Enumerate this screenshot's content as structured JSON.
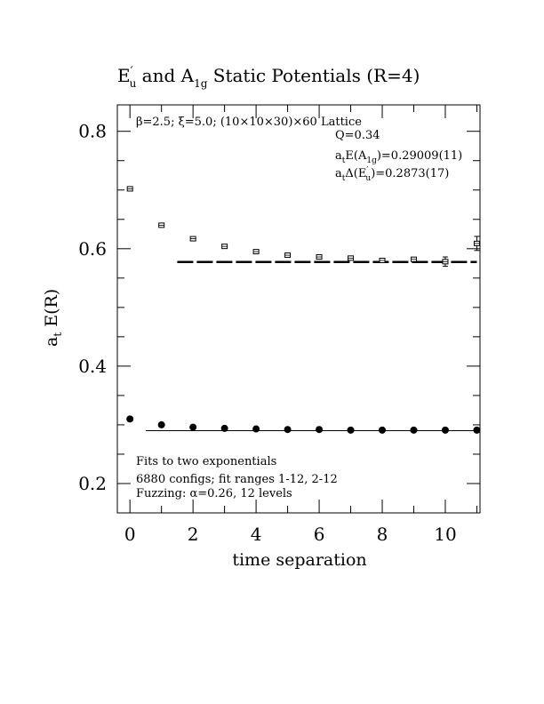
{
  "chart_data": {
    "type": "scatter",
    "title": {
      "part1": "E",
      "part1_sup": "′",
      "part1_sub": "u",
      "part2": " and A",
      "part2_sub": "1g",
      "part3": " Static Potentials (R=4)"
    },
    "xlabel": "time separation",
    "ylabel_main": "a",
    "ylabel_sub": "t",
    "ylabel_rest": " E(R)",
    "xlim": [
      -0.4,
      11.1
    ],
    "ylim": [
      0.15,
      0.845
    ],
    "x_ticks": [
      0,
      2,
      4,
      6,
      8,
      10
    ],
    "x_tick_labels": [
      "0",
      "2",
      "4",
      "6",
      "8",
      "10"
    ],
    "y_ticks": [
      0.2,
      0.4,
      0.6,
      0.8
    ],
    "y_tick_labels": [
      "0.2",
      "0.4",
      "0.6",
      "0.8"
    ],
    "x_minor_step": 1,
    "y_minor_step": 0.05,
    "grid": false,
    "series": [
      {
        "marker": "open-square",
        "x": [
          0,
          1,
          2,
          3,
          4,
          5,
          6,
          7,
          8,
          9,
          10,
          11
        ],
        "y": [
          0.702,
          0.64,
          0.617,
          0.604,
          0.595,
          0.589,
          0.586,
          0.584,
          0.58,
          0.582,
          0.578,
          0.609
        ],
        "err": [
          0.002,
          0.002,
          0.002,
          0.002,
          0.002,
          0.002,
          0.003,
          0.003,
          0.003,
          0.004,
          0.008,
          0.012
        ]
      },
      {
        "marker": "filled-circle",
        "x": [
          0,
          1,
          2,
          3,
          4,
          5,
          6,
          7,
          8,
          9,
          10,
          11
        ],
        "y": [
          0.31,
          0.3,
          0.296,
          0.294,
          0.293,
          0.292,
          0.292,
          0.291,
          0.291,
          0.291,
          0.291,
          0.291
        ],
        "err": [
          0.001,
          0.001,
          0.001,
          0.001,
          0.001,
          0.001,
          0.001,
          0.001,
          0.001,
          0.001,
          0.001,
          0.001
        ]
      }
    ],
    "fit_lines": [
      {
        "style": "dashed",
        "x": [
          1.5,
          11
        ],
        "y": 0.5773
      },
      {
        "style": "solid",
        "x": [
          0.5,
          11
        ],
        "y": 0.29009
      }
    ],
    "annotations": {
      "lattice": "β=2.5; ξ=5.0; (10×10×30)×60 Lattice",
      "q": "Q=0.34",
      "fit1_pre": "a",
      "fit1_sub1": "t",
      "fit1_mid": "E(A",
      "fit1_sub2": "1g",
      "fit1_post": ")=0.29009(11)",
      "fit2_pre": "a",
      "fit2_sub1": "t",
      "fit2_mid": "Δ(E",
      "fit2_sup": "′",
      "fit2_sub2": "u",
      "fit2_post": ")=0.2873(17)",
      "note1": "Fits to two exponentials",
      "note2": "6880 configs; fit ranges 1-12, 2-12",
      "note3": "Fuzzing: α=0.26, 12 levels"
    }
  }
}
